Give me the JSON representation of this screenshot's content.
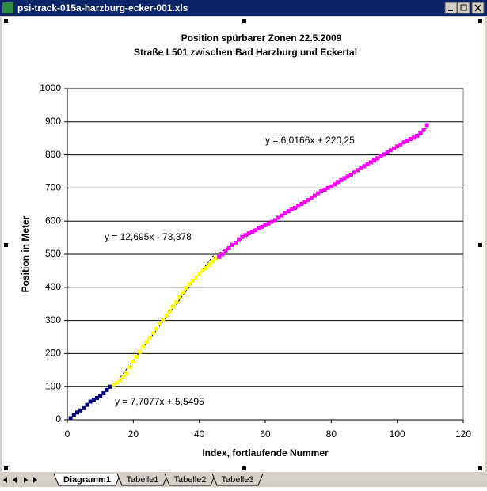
{
  "window": {
    "title": "psi-track-015a-harzburg-ecker-001.xls",
    "tabs": [
      "Diagramm1",
      "Tabelle1",
      "Tabelle2",
      "Tabelle3"
    ]
  },
  "chart_data": {
    "type": "scatter",
    "title": "Position spürbarer Zonen   22.5.2009",
    "subtitle": "Straße L501 zwischen Bad Harzburg und Eckertal",
    "x_label": "Index, fortlaufende Nummer",
    "y_label": "Position in Meter",
    "xlim": [
      0,
      120
    ],
    "xticks": [
      0,
      20,
      40,
      60,
      80,
      100,
      120
    ],
    "ylim": [
      0,
      1000
    ],
    "yticks": [
      0,
      100,
      200,
      300,
      400,
      500,
      600,
      700,
      800,
      900,
      1000
    ],
    "grid": true,
    "series": [
      {
        "color": "#000080",
        "trendline_label": "y = 7,7077x + 5,5495",
        "x": [
          1,
          2,
          3,
          4,
          5,
          6,
          7,
          8,
          9,
          10,
          11,
          12,
          13
        ],
        "values": [
          5,
          15,
          22,
          28,
          35,
          45,
          55,
          60,
          66,
          72,
          80,
          90,
          100
        ]
      },
      {
        "color": "#ffff00",
        "trendline_label": "y = 12,695x - 73,378",
        "x": [
          14,
          15,
          16,
          17,
          18,
          19,
          20,
          21,
          22,
          23,
          24,
          25,
          26,
          27,
          28,
          29,
          30,
          31,
          32,
          33,
          34,
          35,
          36,
          37,
          38,
          39,
          40,
          41,
          42,
          43,
          44,
          45
        ],
        "values": [
          105,
          112,
          120,
          128,
          140,
          158,
          175,
          190,
          205,
          220,
          235,
          248,
          262,
          275,
          290,
          302,
          315,
          328,
          342,
          355,
          370,
          385,
          398,
          410,
          420,
          430,
          440,
          450,
          458,
          468,
          478,
          488
        ]
      },
      {
        "color": "#ff00ff",
        "trendline_label": "y = 6,0166x + 220,25",
        "x": [
          46,
          47,
          48,
          49,
          50,
          51,
          52,
          53,
          54,
          55,
          56,
          57,
          58,
          59,
          60,
          61,
          62,
          63,
          64,
          65,
          66,
          67,
          68,
          69,
          70,
          71,
          72,
          73,
          74,
          75,
          76,
          77,
          78,
          79,
          80,
          81,
          82,
          83,
          84,
          85,
          86,
          87,
          88,
          89,
          90,
          91,
          92,
          93,
          94,
          95,
          96,
          97,
          98,
          99,
          100,
          101,
          102,
          103,
          104,
          105,
          106,
          107,
          108,
          109
        ],
        "values": [
          492,
          500,
          510,
          518,
          528,
          535,
          545,
          552,
          558,
          563,
          568,
          572,
          578,
          583,
          588,
          593,
          598,
          603,
          610,
          617,
          624,
          630,
          635,
          640,
          646,
          652,
          658,
          664,
          670,
          677,
          684,
          690,
          695,
          700,
          705,
          711,
          718,
          724,
          730,
          735,
          740,
          747,
          754,
          760,
          766,
          772,
          778,
          784,
          790,
          796,
          802,
          808,
          814,
          820,
          826,
          832,
          838,
          843,
          848,
          852,
          858,
          865,
          875,
          890
        ]
      }
    ]
  }
}
